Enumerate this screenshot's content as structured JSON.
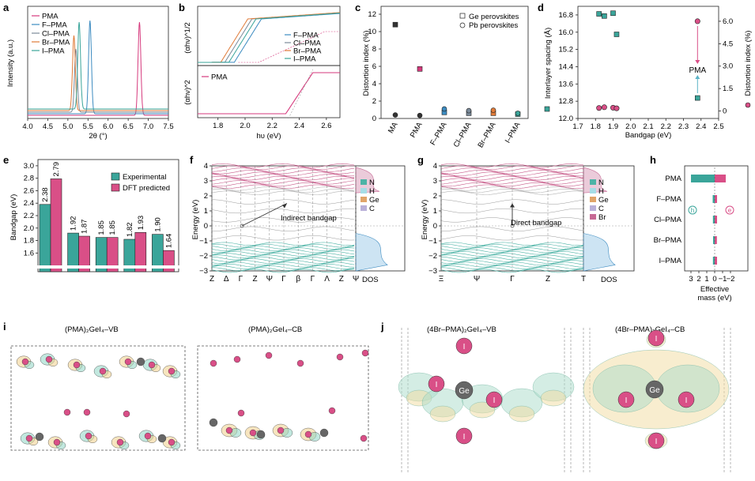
{
  "panel_labels": {
    "a": "a",
    "b": "b",
    "c": "c",
    "d": "d",
    "e": "e",
    "f": "f",
    "g": "g",
    "h": "h",
    "i": "i",
    "j": "j"
  },
  "colors": {
    "PMA": "#d63a7d",
    "F-PMA": "#3c8bc0",
    "Cl-PMA": "#7a8a9a",
    "Br-PMA": "#e07b39",
    "I-PMA": "#3aa59a",
    "teal": "#3aa59a",
    "pink": "#d94f87",
    "ge_marker": "#5a5a5a",
    "vb": "#7ccfbf",
    "cb": "#e8c56a"
  },
  "chart_data": [
    {
      "id": "a",
      "type": "line",
      "title": "",
      "xlabel": "2θ (°)",
      "ylabel": "Intensity (a.u.)",
      "xlim": [
        4.0,
        7.5
      ],
      "xticks": [
        "4.0",
        "4.5",
        "5.0",
        "5.5",
        "6.0",
        "6.5",
        "7.0",
        "7.5"
      ],
      "series": [
        {
          "name": "PMA",
          "peak": 6.78
        },
        {
          "name": "F–PMA",
          "peak": 5.55
        },
        {
          "name": "Cl–PMA",
          "peak": 5.2
        },
        {
          "name": "Br–PMA",
          "peak": 5.15
        },
        {
          "name": "I–PMA",
          "peak": 5.28
        }
      ]
    },
    {
      "id": "b",
      "type": "line",
      "xlabel": "hυ (eV)",
      "ylabel_top": "(αhν)^1/2",
      "ylabel_bottom": "(αhν)^2",
      "xlim": [
        1.65,
        2.7
      ],
      "xticks": [
        "1.8",
        "2.0",
        "2.2",
        "2.4",
        "2.6"
      ],
      "legend_top": [
        "F–PMA",
        "Cl–PMA",
        "Br–PMA",
        "I–PMA"
      ],
      "legend_bottom": [
        "PMA"
      ],
      "onsets_top": [
        1.92,
        1.85,
        1.82,
        1.88
      ],
      "onset_bottom": 2.35
    },
    {
      "id": "c",
      "type": "scatter",
      "ylabel": "Distortion index (%)",
      "ylim": [
        0,
        12
      ],
      "yticks": [
        "0",
        "2",
        "4",
        "6",
        "8",
        "10",
        "12"
      ],
      "categories": [
        "MA",
        "PMA",
        "F–PMA",
        "Cl–PMA",
        "Br–PMA",
        "I–PMA"
      ],
      "legend": [
        "Ge perovskites",
        "Pb perovskites"
      ],
      "series": [
        {
          "name": "Ge perovskites",
          "values": [
            10.8,
            5.7,
            0.7,
            0.6,
            0.6,
            0.5
          ]
        },
        {
          "name": "Pb perovskites",
          "values": [
            0.4,
            0.35,
            1.1,
            0.9,
            0.95,
            0.6
          ]
        }
      ]
    },
    {
      "id": "d",
      "type": "scatter",
      "xlabel": "Bandgap (eV)",
      "ylabel_left": "Interlayer spacing (Å)",
      "ylabel_right": "Distortion index (%)",
      "xlim": [
        1.7,
        2.5
      ],
      "ylim_left": [
        12.0,
        17.2
      ],
      "ylim_right": [
        -0.5,
        7
      ],
      "xticks": [
        "1.7",
        "1.8",
        "1.9",
        "2.0",
        "2.1",
        "2.2",
        "2.3",
        "2.4",
        "2.5"
      ],
      "yticks_left": [
        "12.0",
        "12.8",
        "13.6",
        "14.4",
        "15.2",
        "16.0",
        "16.8"
      ],
      "yticks_right": [
        "0",
        "1.5",
        "3.0",
        "4.5",
        "6.0"
      ],
      "annotation": "PMA",
      "series": [
        {
          "name": "Interlayer spacing",
          "x": [
            1.82,
            1.85,
            1.9,
            1.92,
            2.38
          ],
          "y": [
            16.85,
            16.75,
            16.88,
            15.9,
            12.95
          ]
        },
        {
          "name": "Distortion index",
          "x": [
            1.82,
            1.85,
            1.9,
            1.92,
            2.38
          ],
          "y": [
            0.2,
            0.25,
            0.22,
            0.18,
            6.0
          ]
        }
      ]
    },
    {
      "id": "e",
      "type": "bar",
      "ylabel": "Bandgap (eV)",
      "ylim": [
        1.3,
        3.1
      ],
      "yticks": [
        "1.6",
        "1.8",
        "2.0",
        "2.2",
        "2.4",
        "2.6",
        "2.8",
        "3.0"
      ],
      "legend": [
        "Experimental",
        "DFT predicted"
      ],
      "series": [
        {
          "name": "Experimental",
          "values": [
            2.38,
            1.92,
            1.85,
            1.82,
            1.9
          ]
        },
        {
          "name": "DFT predicted",
          "values": [
            2.79,
            1.87,
            1.85,
            1.93,
            1.64
          ]
        }
      ],
      "labels": {
        "Experimental": [
          "2.38",
          "1.92",
          "1.85",
          "1.82",
          "1.90"
        ],
        "DFT predicted": [
          "2.79",
          "1.87",
          "1.85",
          "1.93",
          "1.64"
        ]
      }
    },
    {
      "id": "h",
      "type": "bar",
      "xlabel": "Effective mass (eV)",
      "categories": [
        "PMA",
        "F–PMA",
        "Cl–PMA",
        "Br–PMA",
        "I–PMA"
      ],
      "xticks": [
        "3",
        "2",
        "1",
        "0",
        "−1",
        "−2"
      ],
      "markers": [
        "h",
        "e"
      ],
      "series": [
        {
          "name": "h",
          "values": [
            3.0,
            0.25,
            0.22,
            0.2,
            0.22
          ]
        },
        {
          "name": "e",
          "values": [
            -1.4,
            -0.3,
            -0.3,
            -0.28,
            -0.3
          ]
        }
      ]
    }
  ],
  "panel_f": {
    "ylabel": "Energy (eV)",
    "yticks": [
      "4",
      "3",
      "2",
      "1",
      "0",
      "−1",
      "−2",
      "−3"
    ],
    "kpoints": [
      "Z",
      "Δ",
      "Γ",
      "Z",
      "Ψ",
      "Γ",
      "β",
      "Γ",
      "Λ",
      "Z",
      "Ψ"
    ],
    "annotation": "Indirect bandgap",
    "dos_label": "DOS",
    "legend": [
      "N",
      "H",
      "Ge",
      "C"
    ]
  },
  "panel_g": {
    "ylabel": "Energy (eV)",
    "yticks": [
      "4",
      "3",
      "2",
      "1",
      "0",
      "−1",
      "−2",
      "−3"
    ],
    "kpoints": [
      "Ξ",
      "Ψ",
      "Γ",
      "Z",
      "Τ"
    ],
    "annotation": "Direct bandgap",
    "dos_label": "DOS",
    "legend": [
      "N",
      "H",
      "Ge",
      "C",
      "Br"
    ]
  },
  "panel_i": {
    "title_left": "(PMA)₂GeI₄–VB",
    "title_right": "(PMA)₂GeI₄–CB"
  },
  "panel_j": {
    "title_left": "(4Br–PMA)₂GeI₄–VB",
    "title_right": "(4Br–PMA)₂GeI₄–CB",
    "atom_i": "I",
    "atom_ge": "Ge"
  }
}
